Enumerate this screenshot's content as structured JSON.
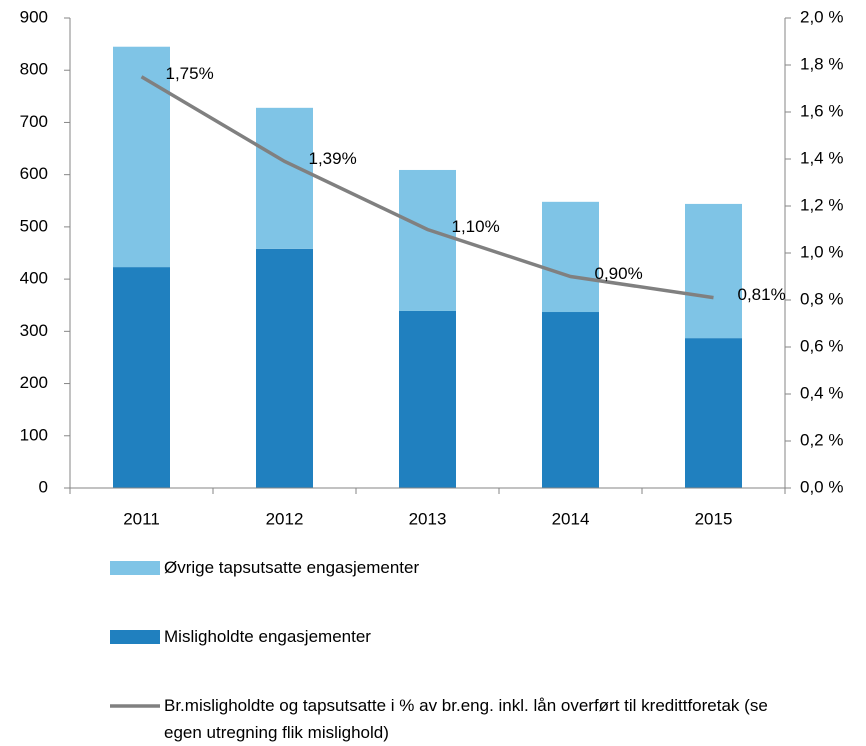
{
  "chart_data": {
    "type": "bar_line",
    "categories": [
      "2011",
      "2012",
      "2013",
      "2014",
      "2015"
    ],
    "series": [
      {
        "name": "Misligholdte engasjementer",
        "color": "#2080bf",
        "values": [
          423,
          458,
          339,
          337,
          287
        ]
      },
      {
        "name": "Øvrige tapsutsatte engasjementer",
        "color": "#7fc4e6",
        "values": [
          422,
          270,
          270,
          211,
          257
        ]
      },
      {
        "name": "Br.misligholdte og tapsutsatte i % av br.eng. inkl. lån overført til kredittforetak (se egen utregning flik mislighold)",
        "color": "#808080",
        "axis": "y2",
        "values": [
          1.75,
          1.39,
          1.1,
          0.9,
          0.81
        ],
        "value_labels": [
          "1,75%",
          "1,39%",
          "1,10%",
          "0,90%",
          "0,81%"
        ]
      }
    ],
    "ylim": [
      0,
      900
    ],
    "yticks": [
      0,
      100,
      200,
      300,
      400,
      500,
      600,
      700,
      800,
      900
    ],
    "y2lim": [
      0,
      2.0
    ],
    "y2ticks": [
      {
        "value": 0,
        "label": "0,0 %"
      },
      {
        "value": 0.2,
        "label": "0,2 %"
      },
      {
        "value": 0.4,
        "label": "0,4 %"
      },
      {
        "value": 0.6,
        "label": "0,6 %"
      },
      {
        "value": 0.8,
        "label": "0,8 %"
      },
      {
        "value": 1.0,
        "label": "1,0 %"
      },
      {
        "value": 1.2,
        "label": "1,2 %"
      },
      {
        "value": 1.4,
        "label": "1,4 %"
      },
      {
        "value": 1.6,
        "label": "1,6 %"
      },
      {
        "value": 1.8,
        "label": "1,8 %"
      },
      {
        "value": 2.0,
        "label": "2,0 %"
      }
    ],
    "grid": false
  }
}
